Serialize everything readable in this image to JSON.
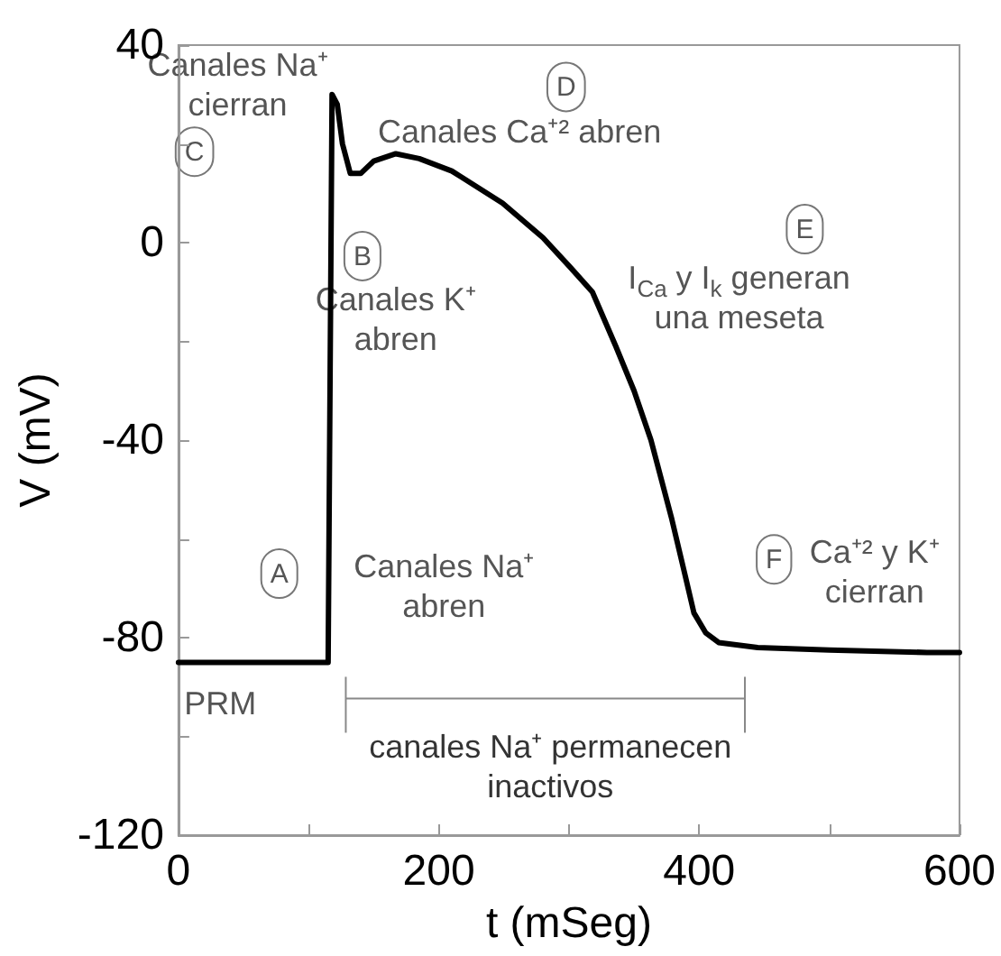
{
  "chart_data": {
    "type": "line",
    "xlabel": "t (mSeg)",
    "ylabel": "V (mV)",
    "xlim": [
      0,
      600
    ],
    "xticks": [
      0,
      {
        "value": 100,
        "label": null
      },
      200,
      {
        "value": 300,
        "label": null
      },
      400,
      {
        "value": 500,
        "label": null
      },
      600
    ],
    "ylim": [
      -120,
      40
    ],
    "yticks": [
      -120,
      {
        "value": -100,
        "label": null
      },
      -80,
      {
        "value": -60,
        "label": null
      },
      -40,
      {
        "value": -20,
        "label": null
      },
      0,
      {
        "value": 20,
        "label": null
      },
      40
    ],
    "grid": false,
    "marker": "none",
    "line_style": "solid",
    "series": [
      {
        "color": "#000000",
        "x": [
          0,
          115,
          118,
          122,
          126,
          132,
          140,
          150,
          167,
          185,
          210,
          249,
          280,
          301,
          318,
          336,
          350,
          363,
          379,
          388,
          396,
          405,
          415,
          445,
          500,
          575,
          600
        ],
        "values": [
          -85,
          -85,
          30,
          28,
          20,
          14,
          14,
          16.5,
          18,
          17,
          14.5,
          8,
          1,
          -5,
          -10,
          -21,
          -30,
          -40,
          -56,
          -66,
          -75,
          -79,
          -81,
          -82,
          -82.5,
          -83,
          -83
        ]
      }
    ],
    "annotations": [
      "Canales Na⁺\ncierran",
      "C",
      "D",
      "Canales Ca⁺² abren",
      "B",
      "Canales K⁺\nabren",
      "E",
      "I$_{Ca}$ y I$_{k}$ generan\nuna meseta",
      "A",
      "Canales Na⁺\nabren",
      "F",
      "Ca⁺² y K⁺\ncierran",
      "PRM",
      "canales Na⁺ permanecen\ninactivos"
    ]
  }
}
